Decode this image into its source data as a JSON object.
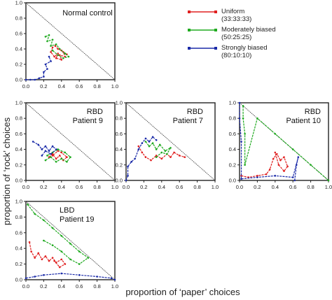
{
  "figure": {
    "xlabel": "proportion of ‘paper’ choices",
    "ylabel": "proportion of ‘rock’ choices"
  },
  "legend": [
    {
      "name": "Uniform",
      "ratio": "(33:33:33)",
      "color": "#e02020"
    },
    {
      "name": "Moderately biased",
      "ratio": "(50:25:25)",
      "color": "#1faa1f"
    },
    {
      "name": "Strongly biased",
      "ratio": "(80:10:10)",
      "color": "#1a2aa8"
    }
  ],
  "chart_data": [
    {
      "type": "line",
      "title": "Normal control",
      "xlim": [
        0,
        1
      ],
      "ylim": [
        0,
        1
      ],
      "xticks": [
        "0.0",
        "0.2",
        "0.4",
        "0.6",
        "0.8",
        "1.0"
      ],
      "yticks": [
        "0.0",
        "0.2",
        "0.4",
        "0.6",
        "0.8",
        "1.0"
      ],
      "series": [
        {
          "name": "Uniform",
          "color": "#e02020",
          "x": [
            0.3,
            0.28,
            0.32,
            0.36,
            0.34,
            0.4,
            0.38,
            0.44,
            0.42,
            0.46,
            0.4,
            0.36,
            0.33
          ],
          "y": [
            0.42,
            0.36,
            0.3,
            0.34,
            0.28,
            0.26,
            0.32,
            0.3,
            0.36,
            0.33,
            0.38,
            0.4,
            0.44
          ]
        },
        {
          "name": "Moderately biased",
          "color": "#1faa1f",
          "x": [
            0.22,
            0.26,
            0.24,
            0.3,
            0.28,
            0.34,
            0.38,
            0.44,
            0.48,
            0.42,
            0.36,
            0.3
          ],
          "y": [
            0.56,
            0.58,
            0.5,
            0.52,
            0.44,
            0.46,
            0.4,
            0.34,
            0.3,
            0.28,
            0.32,
            0.38
          ]
        },
        {
          "name": "Strongly biased",
          "color": "#1a2aa8",
          "x": [
            0.0,
            0.05,
            0.1,
            0.15,
            0.2,
            0.2,
            0.24,
            0.22,
            0.28,
            0.26
          ],
          "y": [
            0.0,
            0.0,
            0.0,
            0.02,
            0.04,
            0.1,
            0.14,
            0.2,
            0.24,
            0.3
          ]
        }
      ]
    },
    {
      "type": "line",
      "title": "RBD\nPatient 9",
      "xlim": [
        0,
        1
      ],
      "ylim": [
        0,
        1
      ],
      "xticks": [
        "0.0",
        "0.2",
        "0.4",
        "0.6",
        "0.8",
        "1.0"
      ],
      "yticks": [
        "0.0",
        "0.2",
        "0.4",
        "0.6",
        "0.8",
        "1.0"
      ],
      "series": [
        {
          "name": "Uniform",
          "color": "#e02020",
          "x": [
            0.26,
            0.3,
            0.34,
            0.38,
            0.42,
            0.46,
            0.4,
            0.36,
            0.3
          ],
          "y": [
            0.3,
            0.34,
            0.28,
            0.32,
            0.26,
            0.3,
            0.36,
            0.38,
            0.32
          ]
        },
        {
          "name": "Moderately biased",
          "color": "#1faa1f",
          "x": [
            0.22,
            0.28,
            0.34,
            0.4,
            0.46,
            0.5,
            0.44,
            0.36,
            0.3,
            0.24
          ],
          "y": [
            0.26,
            0.3,
            0.24,
            0.28,
            0.24,
            0.3,
            0.36,
            0.4,
            0.36,
            0.32
          ]
        },
        {
          "name": "Strongly biased",
          "color": "#1a2aa8",
          "x": [
            0.08,
            0.14,
            0.18,
            0.22,
            0.26,
            0.3,
            0.34,
            0.28,
            0.22,
            0.18
          ],
          "y": [
            0.5,
            0.46,
            0.4,
            0.44,
            0.38,
            0.44,
            0.4,
            0.34,
            0.38,
            0.32
          ]
        }
      ]
    },
    {
      "type": "line",
      "title": "RBD\nPatient 7",
      "xlim": [
        0,
        1
      ],
      "ylim": [
        0,
        1
      ],
      "xticks": [
        "0.0",
        "0.2",
        "0.4",
        "0.6",
        "0.8",
        "1.0"
      ],
      "yticks": [
        "0.0",
        "0.2",
        "0.4",
        "0.6",
        "0.8",
        "1.0"
      ],
      "series": [
        {
          "name": "Uniform",
          "color": "#e02020",
          "x": [
            0.14,
            0.18,
            0.22,
            0.28,
            0.34,
            0.4,
            0.46,
            0.5,
            0.54,
            0.6,
            0.66
          ],
          "y": [
            0.44,
            0.36,
            0.3,
            0.26,
            0.32,
            0.28,
            0.34,
            0.3,
            0.36,
            0.32,
            0.3
          ]
        },
        {
          "name": "Moderately biased",
          "color": "#1faa1f",
          "x": [
            0.22,
            0.26,
            0.3,
            0.34,
            0.38,
            0.44,
            0.5,
            0.46,
            0.4,
            0.34
          ],
          "y": [
            0.5,
            0.44,
            0.48,
            0.4,
            0.46,
            0.38,
            0.42,
            0.34,
            0.36,
            0.3
          ]
        },
        {
          "name": "Strongly biased",
          "color": "#1a2aa8",
          "x": [
            0.0,
            0.02,
            0.02,
            0.06,
            0.1,
            0.14,
            0.18,
            0.22,
            0.26,
            0.3,
            0.34
          ],
          "y": [
            0.0,
            0.06,
            0.18,
            0.24,
            0.28,
            0.4,
            0.48,
            0.54,
            0.5,
            0.56,
            0.52
          ]
        }
      ]
    },
    {
      "type": "line",
      "title": "RBD\nPatient 10",
      "xlim": [
        0,
        1
      ],
      "ylim": [
        0,
        1
      ],
      "xticks": [
        "0.0",
        "0.2",
        "0.4",
        "0.6",
        "0.8",
        "1.0"
      ],
      "yticks": [
        "0.0",
        "0.2",
        "0.4",
        "0.6",
        "0.8",
        "1.0"
      ],
      "series": [
        {
          "name": "Uniform",
          "color": "#e02020",
          "x": [
            0.02,
            0.1,
            0.2,
            0.3,
            0.34,
            0.38,
            0.42,
            0.46,
            0.5,
            0.54,
            0.5,
            0.44,
            0.4
          ],
          "y": [
            0.06,
            0.04,
            0.06,
            0.08,
            0.14,
            0.28,
            0.34,
            0.26,
            0.3,
            0.18,
            0.12,
            0.2,
            0.36
          ]
        },
        {
          "name": "Moderately biased",
          "color": "#1faa1f",
          "x": [
            0.04,
            0.04,
            0.06,
            0.06,
            0.2,
            0.4,
            0.6,
            0.8,
            1.0
          ],
          "y": [
            0.96,
            0.8,
            0.6,
            0.2,
            0.8,
            0.6,
            0.4,
            0.2,
            0.0
          ]
        },
        {
          "name": "Strongly biased",
          "color": "#1a2aa8",
          "x": [
            0.0,
            0.0,
            0.02,
            0.02,
            0.2,
            0.4,
            0.6,
            0.66,
            0.64,
            0.62
          ],
          "y": [
            1.0,
            0.8,
            0.5,
            0.02,
            0.04,
            0.06,
            0.04,
            0.3,
            0.2,
            0.0
          ]
        }
      ]
    },
    {
      "type": "line",
      "title": "LBD\nPatient 19",
      "xlim": [
        0,
        1
      ],
      "ylim": [
        0,
        1
      ],
      "xticks": [
        "0.0",
        "0.2",
        "0.4",
        "0.6",
        "0.8",
        "1.0"
      ],
      "yticks": [
        "0.0",
        "0.2",
        "0.4",
        "0.6",
        "0.8",
        "1.0"
      ],
      "series": [
        {
          "name": "Uniform",
          "color": "#e02020",
          "x": [
            0.04,
            0.06,
            0.1,
            0.14,
            0.18,
            0.22,
            0.26,
            0.3,
            0.34,
            0.4,
            0.44,
            0.38,
            0.32
          ],
          "y": [
            0.48,
            0.36,
            0.28,
            0.34,
            0.26,
            0.3,
            0.24,
            0.28,
            0.22,
            0.26,
            0.2,
            0.16,
            0.24
          ]
        },
        {
          "name": "Moderately biased",
          "color": "#1faa1f",
          "x": [
            0.02,
            0.1,
            0.2,
            0.3,
            0.4,
            0.5,
            0.6,
            0.7,
            0.6,
            0.5,
            0.4,
            0.3,
            0.2
          ],
          "y": [
            0.96,
            0.84,
            0.76,
            0.66,
            0.56,
            0.46,
            0.36,
            0.28,
            0.2,
            0.26,
            0.36,
            0.44,
            0.5
          ]
        },
        {
          "name": "Strongly biased",
          "color": "#1a2aa8",
          "x": [
            0.0,
            0.1,
            0.2,
            0.4,
            0.6,
            0.8,
            0.96,
            1.0
          ],
          "y": [
            0.02,
            0.04,
            0.06,
            0.08,
            0.06,
            0.04,
            0.02,
            0.0
          ]
        }
      ]
    }
  ]
}
